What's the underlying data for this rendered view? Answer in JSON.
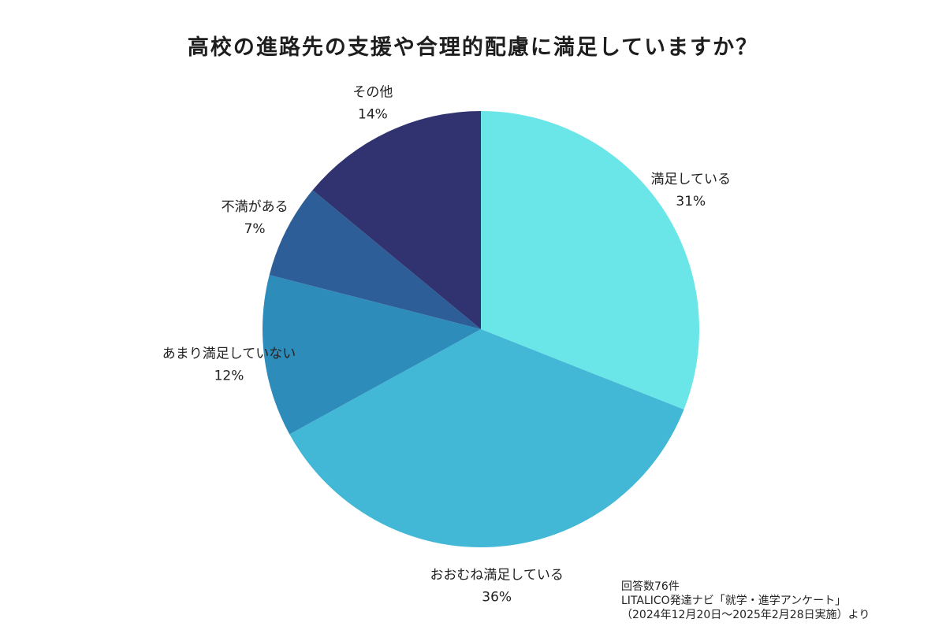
{
  "chart_data": {
    "type": "pie",
    "title": "高校の進路先の支援や合理的配慮に満足していますか？",
    "slices": [
      {
        "label": "満足している",
        "value": 31,
        "value_label": "31%",
        "color": "#6ae5e8"
      },
      {
        "label": "おおむね満足している",
        "value": 36,
        "value_label": "36%",
        "color": "#43b8d6"
      },
      {
        "label": "あまり満足していない",
        "value": 12,
        "value_label": "12%",
        "color": "#2e8cbb"
      },
      {
        "label": "不満がある",
        "value": 7,
        "value_label": "7%",
        "color": "#2e5e97"
      },
      {
        "label": "その他",
        "value": 14,
        "value_label": "14%",
        "color": "#30336f"
      }
    ],
    "start": "top",
    "direction": "clockwise"
  },
  "source": {
    "line1": "回答数76件",
    "line2": "LITALICO発達ナビ「就学・進学アンケート」",
    "line3": "（2024年12月20日〜2025年2月28日実施）より"
  }
}
